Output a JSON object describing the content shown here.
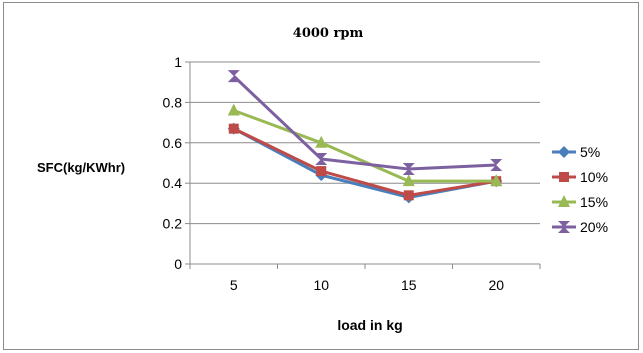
{
  "chart_data": {
    "type": "line",
    "title": "4000  rpm",
    "xlabel": "load in kg",
    "ylabel": "SFC(kg/KWhr)",
    "categories": [
      "5",
      "10",
      "15",
      "20"
    ],
    "ylim": [
      0,
      1
    ],
    "yticks": [
      "0",
      "0.2",
      "0.4",
      "0.6",
      "0.8",
      "1"
    ],
    "grid": true,
    "legend_position": "right",
    "series": [
      {
        "name": "5%",
        "values": [
          0.67,
          0.44,
          0.33,
          0.41
        ],
        "color": "#4a7ebb",
        "marker": "diamond"
      },
      {
        "name": "10%",
        "values": [
          0.67,
          0.46,
          0.34,
          0.41
        ],
        "color": "#be4b48",
        "marker": "square"
      },
      {
        "name": "15%",
        "values": [
          0.76,
          0.6,
          0.41,
          0.41
        ],
        "color": "#98b954",
        "marker": "triangle"
      },
      {
        "name": "20%",
        "values": [
          0.93,
          0.52,
          0.47,
          0.49
        ],
        "color": "#7d60a0",
        "marker": "xstar"
      }
    ]
  }
}
